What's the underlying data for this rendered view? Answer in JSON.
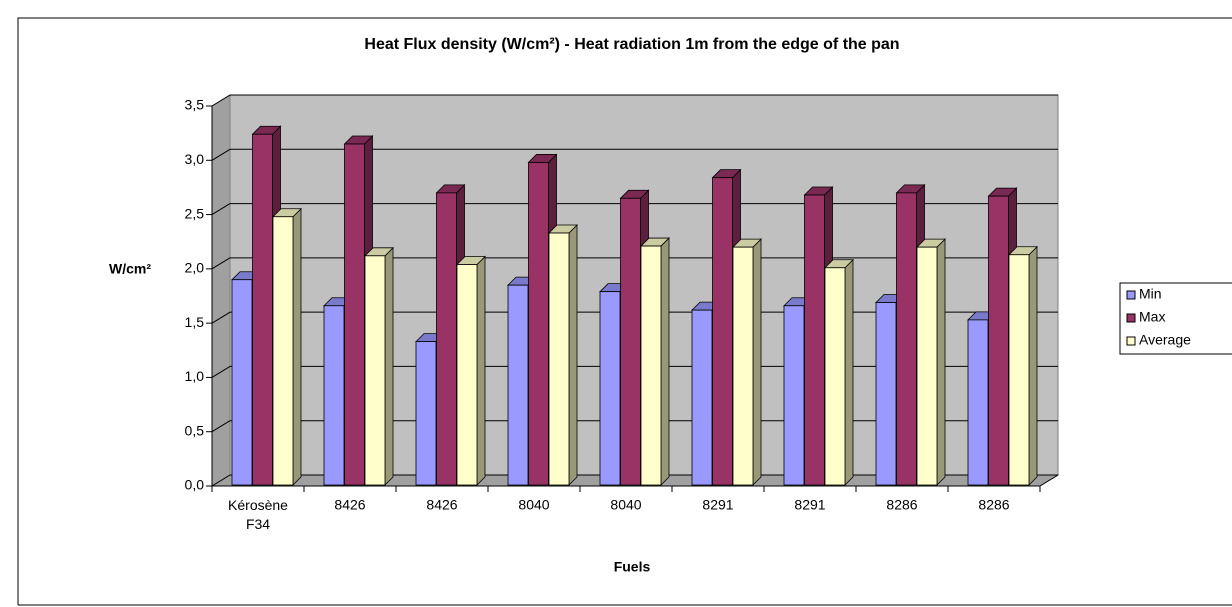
{
  "chart_data": {
    "type": "bar3d",
    "title": "Heat Flux density (W/cm²) - Heat radiation 1m from the edge of the pan",
    "y_label": "W/cm²",
    "x_label": "Fuels",
    "categories": [
      "Kérosène F34",
      "8426",
      "8426",
      "8040",
      "8040",
      "8291",
      "8291",
      "8286",
      "8286"
    ],
    "series": [
      {
        "name": "Min",
        "color": "#9999ff",
        "values": [
          1.9,
          1.66,
          1.33,
          1.85,
          1.79,
          1.62,
          1.66,
          1.69,
          1.53
        ]
      },
      {
        "name": "Max",
        "color": "#993366",
        "values": [
          3.24,
          3.15,
          2.7,
          2.98,
          2.65,
          2.84,
          2.68,
          2.7,
          2.67
        ]
      },
      {
        "name": "Average",
        "color": "#ffffcc",
        "values": [
          2.48,
          2.12,
          2.04,
          2.33,
          2.21,
          2.2,
          2.01,
          2.2,
          2.13
        ]
      }
    ],
    "ylim": [
      0,
      3.5
    ],
    "yticks": [
      {
        "value": 0,
        "label": "0,0"
      },
      {
        "value": 0.5,
        "label": "0,5"
      },
      {
        "value": 1,
        "label": "1,0"
      },
      {
        "value": 1.5,
        "label": "1,5"
      },
      {
        "value": 2,
        "label": "2,0"
      },
      {
        "value": 2.5,
        "label": "2,5"
      },
      {
        "value": 3,
        "label": "3,0"
      },
      {
        "value": 3.5,
        "label": "3,5"
      }
    ],
    "grid": true,
    "legend": "right"
  }
}
